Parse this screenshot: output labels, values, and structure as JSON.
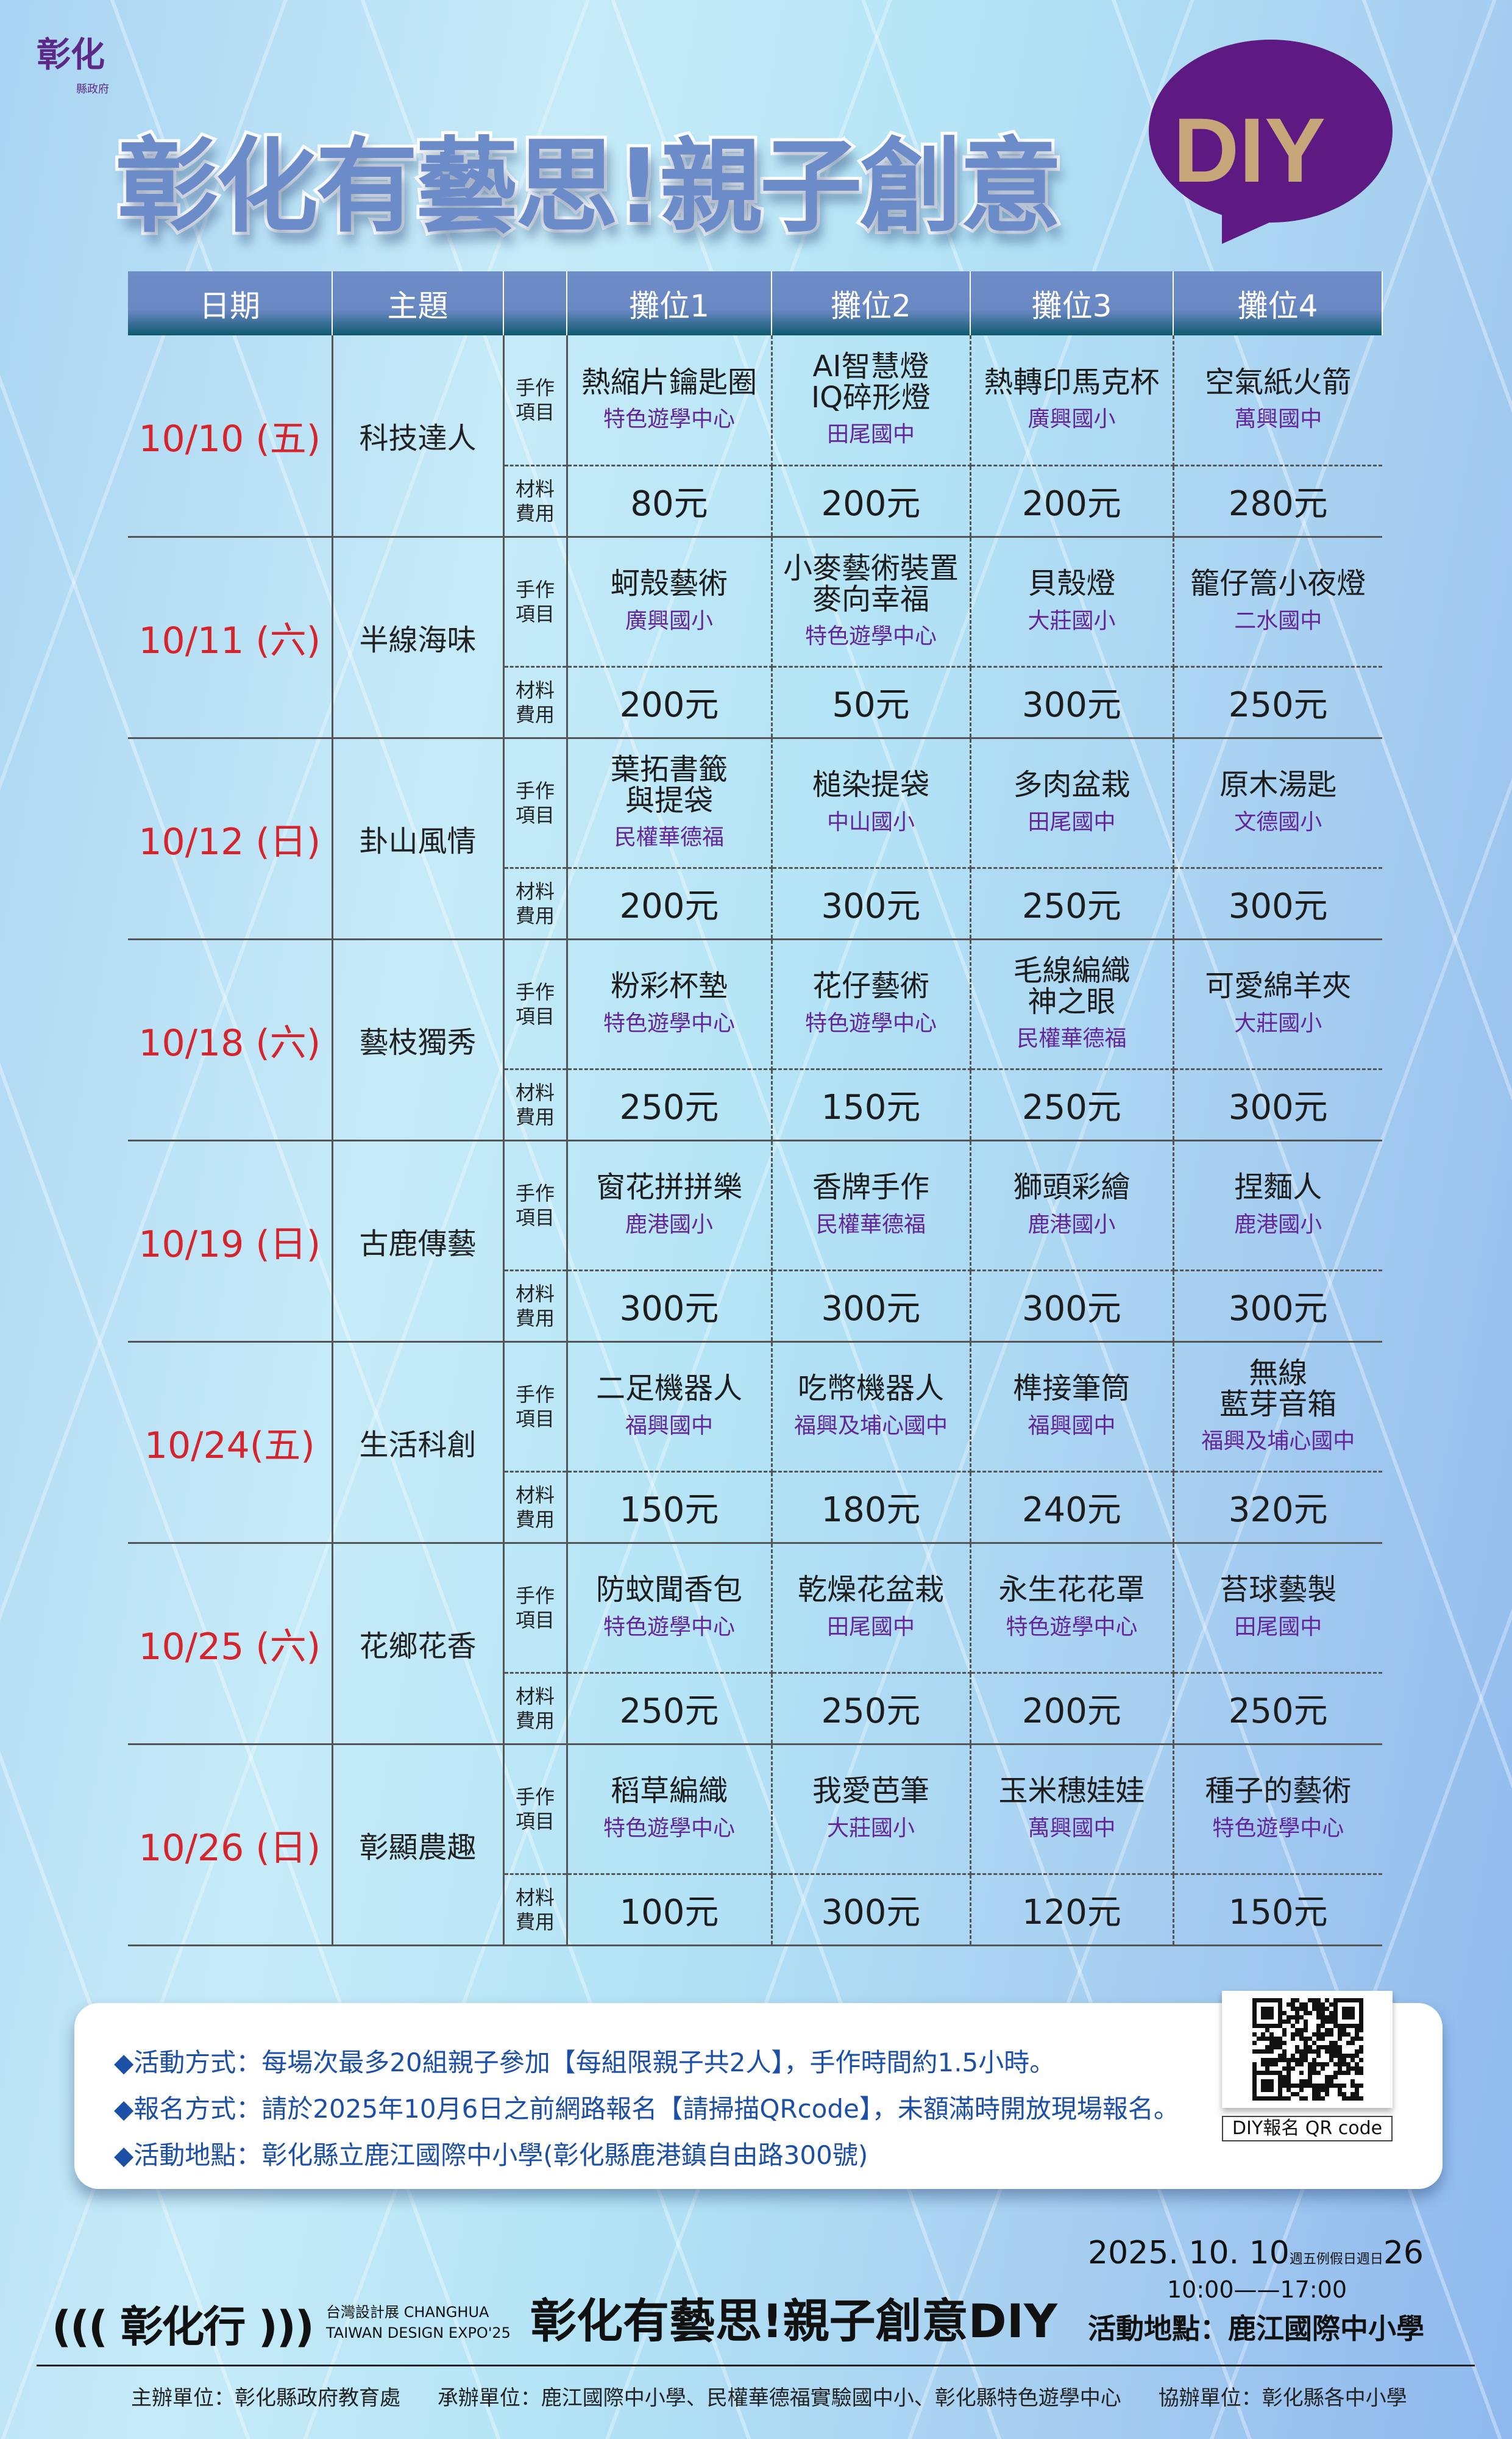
{
  "logo": {
    "main": "彰化",
    "sub": "縣政府"
  },
  "title": "彰化有藝思!親子創意",
  "title_diy": "DIY",
  "colors": {
    "date": "#d5242c",
    "venue": "#64259a",
    "header": "#6a88c4",
    "bubble": "#5e1a82",
    "diy": "#c7a67a",
    "info_text": "#1c4fa6"
  },
  "table": {
    "headers": [
      "日期",
      "主題",
      "",
      "攤位1",
      "攤位2",
      "攤位3",
      "攤位4"
    ],
    "item_label": "手作\n項目",
    "cost_label": "材料\n費用",
    "rows": [
      {
        "date": "10/10 (五)",
        "theme": "科技達人",
        "stalls": [
          {
            "item": "熱縮片鑰匙圈",
            "venue": "特色遊學中心",
            "cost": "80元"
          },
          {
            "item": "AI智慧燈\nIQ碎形燈",
            "venue": "田尾國中",
            "cost": "200元"
          },
          {
            "item": "熱轉印馬克杯",
            "venue": "廣興國小",
            "cost": "200元"
          },
          {
            "item": "空氣紙火箭",
            "venue": "萬興國中",
            "cost": "280元"
          }
        ]
      },
      {
        "date": "10/11 (六)",
        "theme": "半線海味",
        "stalls": [
          {
            "item": "蚵殼藝術",
            "venue": "廣興國小",
            "cost": "200元"
          },
          {
            "item": "小麥藝術裝置\n麥向幸福",
            "venue": "特色遊學中心",
            "cost": "50元"
          },
          {
            "item": "貝殼燈",
            "venue": "大莊國小",
            "cost": "300元"
          },
          {
            "item": "籠仔篙小夜燈",
            "venue": "二水國中",
            "cost": "250元"
          }
        ]
      },
      {
        "date": "10/12 (日)",
        "theme": "卦山風情",
        "stalls": [
          {
            "item": "葉拓書籤\n與提袋",
            "venue": "民權華德福",
            "cost": "200元"
          },
          {
            "item": "槌染提袋",
            "venue": "中山國小",
            "cost": "300元"
          },
          {
            "item": "多肉盆栽",
            "venue": "田尾國中",
            "cost": "250元"
          },
          {
            "item": "原木湯匙",
            "venue": "文德國小",
            "cost": "300元"
          }
        ]
      },
      {
        "date": "10/18 (六)",
        "theme": "藝枝獨秀",
        "stalls": [
          {
            "item": "粉彩杯墊",
            "venue": "特色遊學中心",
            "cost": "250元"
          },
          {
            "item": "花仔藝術",
            "venue": "特色遊學中心",
            "cost": "150元"
          },
          {
            "item": "毛線編織\n神之眼",
            "venue": "民權華德福",
            "cost": "250元"
          },
          {
            "item": "可愛綿羊夾",
            "venue": "大莊國小",
            "cost": "300元"
          }
        ]
      },
      {
        "date": "10/19 (日)",
        "theme": "古鹿傳藝",
        "stalls": [
          {
            "item": "窗花拼拼樂",
            "venue": "鹿港國小",
            "cost": "300元"
          },
          {
            "item": "香牌手作",
            "venue": "民權華德福",
            "cost": "300元"
          },
          {
            "item": "獅頭彩繪",
            "venue": "鹿港國小",
            "cost": "300元"
          },
          {
            "item": "捏麵人",
            "venue": "鹿港國小",
            "cost": "300元"
          }
        ]
      },
      {
        "date": "10/24(五)",
        "theme": "生活科創",
        "stalls": [
          {
            "item": "二足機器人",
            "venue": "福興國中",
            "cost": "150元"
          },
          {
            "item": "吃幣機器人",
            "venue": "福興及埔心國中",
            "cost": "180元"
          },
          {
            "item": "榫接筆筒",
            "venue": "福興國中",
            "cost": "240元"
          },
          {
            "item": "無線\n藍芽音箱",
            "venue": "福興及埔心國中",
            "cost": "320元"
          }
        ]
      },
      {
        "date": "10/25 (六)",
        "theme": "花鄉花香",
        "stalls": [
          {
            "item": "防蚊聞香包",
            "venue": "特色遊學中心",
            "cost": "250元"
          },
          {
            "item": "乾燥花盆栽",
            "venue": "田尾國中",
            "cost": "250元"
          },
          {
            "item": "永生花花罩",
            "venue": "特色遊學中心",
            "cost": "200元"
          },
          {
            "item": "苔球藝製",
            "venue": "田尾國中",
            "cost": "250元"
          }
        ]
      },
      {
        "date": "10/26 (日)",
        "theme": "彰顯農趣",
        "stalls": [
          {
            "item": "稻草編織",
            "venue": "特色遊學中心",
            "cost": "100元"
          },
          {
            "item": "我愛芭筆",
            "venue": "大莊國小",
            "cost": "300元"
          },
          {
            "item": "玉米穗娃娃",
            "venue": "萬興國中",
            "cost": "120元"
          },
          {
            "item": "種子的藝術",
            "venue": "特色遊學中心",
            "cost": "150元"
          }
        ]
      }
    ]
  },
  "info": [
    "◆活動方式：每場次最多20組親子參加【每組限親子共2人】，手作時間約1.5小時。",
    "◆報名方式：請於2025年10月6日之前網路報名【請掃描QRcode】，未額滿時開放現場報名。",
    "◆活動地點：彰化縣立鹿江國際中小學(彰化縣鹿港鎮自由路300號)"
  ],
  "qr_label": "DIY報名 QR code",
  "footer": {
    "brand": "((( 彰化行 )))",
    "expo_line1": "台灣設計展 CHANGHUA",
    "expo_line2": "TAIWAN DESIGN EXPO'25",
    "event_title": "彰化有藝思!親子創意DIY",
    "date_start": "2025. 10. 10",
    "weekday_start": "週五",
    "holiday": "例假日",
    "weekday_end": "週日",
    "date_end": "26",
    "time": "10:00——17:00",
    "venue": "活動地點：鹿江國際中小學",
    "organizer": "主辦單位：彰化縣政府教育處",
    "executor": "承辦單位：鹿江國際中小學、民權華德福實驗國中小、彰化縣特色遊學中心",
    "co_organizer": "協辦單位：彰化縣各中小學"
  }
}
